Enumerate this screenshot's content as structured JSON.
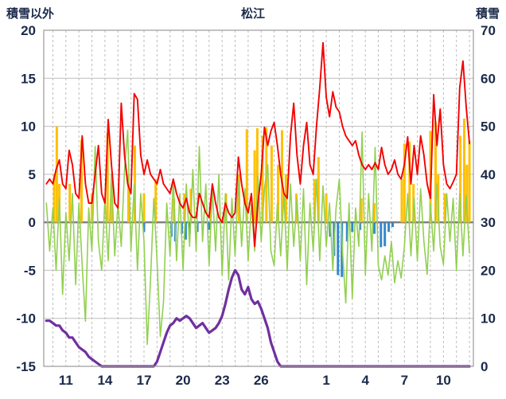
{
  "header": {
    "left_axis_title": "積雪以外",
    "chart_title": "松江",
    "right_axis_title": "積雪"
  },
  "chart_data": {
    "type": "line",
    "title": "松江",
    "left_axis": {
      "label": "積雪以外",
      "min": -15,
      "max": 20,
      "tick_step": 5,
      "ticks": [
        -15,
        -10,
        -5,
        0,
        5,
        10,
        15,
        20
      ]
    },
    "right_axis": {
      "label": "積雪",
      "min": 0,
      "max": 70,
      "tick_step": 10,
      "ticks": [
        0,
        10,
        20,
        30,
        40,
        50,
        60,
        70
      ]
    },
    "x_domain": [
      9.3,
      42.3
    ],
    "x_ticks": [
      {
        "day": 11,
        "label": "11"
      },
      {
        "day": 14,
        "label": "14"
      },
      {
        "day": 17,
        "label": "17"
      },
      {
        "day": 20,
        "label": "20"
      },
      {
        "day": 23,
        "label": "23"
      },
      {
        "day": 26,
        "label": "26"
      },
      {
        "day": 31,
        "label": "1"
      },
      {
        "day": 34,
        "label": "4"
      },
      {
        "day": 37,
        "label": "7"
      },
      {
        "day": 40,
        "label": "10"
      }
    ],
    "grid": {
      "vertical_dashed_every_day": true,
      "horizontal_solid_every_tick": true
    },
    "style": {
      "grid_color": "#bdbdbd",
      "zero_line_color": "#808080",
      "frame_color": "#9a9a9a",
      "axis_text_color": "#1b2a4a",
      "background": "#ffffff"
    },
    "series": [
      {
        "name": "green-line",
        "axis": "left",
        "color": "#92d050",
        "width": 1.6,
        "t0": 9.5,
        "dt": 0.25,
        "values": [
          2,
          -3,
          1.5,
          -5,
          2.5,
          -7.5,
          1,
          -4,
          3,
          -6.5,
          2,
          -4.5,
          -10.3,
          1.5,
          -3,
          7.9,
          -2,
          -5,
          2.5,
          -4,
          5,
          -3.5,
          2,
          -2.5,
          5.5,
          9.6,
          -3,
          4,
          -5,
          3,
          -2,
          -12.7,
          -6,
          2.5,
          -4,
          -11.9,
          -8.3,
          2,
          -3.5,
          4.5,
          -4,
          3,
          -5,
          4,
          -2.5,
          5.5,
          -3,
          7.9,
          -2,
          4,
          -4.5,
          3.5,
          -3,
          5,
          -5.5,
          3,
          -6,
          2.5,
          -3.5,
          4.5,
          -2.5,
          3.5,
          -4,
          2,
          -3,
          4.8,
          -2,
          3.5,
          6,
          -3,
          -4.5,
          2,
          -3.5,
          3,
          -5,
          4,
          -2.5,
          2.5,
          -4,
          3.5,
          -6.5,
          2,
          -3,
          4.5,
          -4,
          3.8,
          -2.5,
          2,
          -5,
          1.5,
          4.5,
          -3,
          -8.4,
          2,
          -7.9,
          1.5,
          -2.5,
          9.4,
          -5.5,
          3,
          -3,
          7.8,
          -4.5,
          -6,
          -3.5,
          -5.5,
          -2,
          -6.3,
          -4,
          -5.8,
          -2.5,
          3,
          -3.5,
          2.5,
          -4,
          3.5,
          -2,
          -5.4,
          2,
          -3,
          4,
          -2.5,
          -4.4,
          3,
          -2,
          2.5,
          -5,
          3,
          -3.5,
          2.8,
          -3.2
        ]
      },
      {
        "name": "red-line",
        "axis": "left",
        "color": "#f40000",
        "width": 1.9,
        "t0": 9.5,
        "dt": 0.25,
        "values": [
          4,
          4.5,
          4,
          5.5,
          6.5,
          4,
          3.5,
          7.5,
          6,
          3,
          2.5,
          9,
          4,
          2,
          2,
          5,
          8,
          3,
          2,
          10.7,
          6,
          2,
          1.5,
          12.4,
          7,
          4,
          3,
          13.4,
          12.8,
          7,
          5,
          6.5,
          5,
          4.5,
          4,
          5.5,
          4,
          3.5,
          3,
          4.5,
          3,
          2,
          1.5,
          2.5,
          1,
          0.5,
          0.5,
          3,
          2,
          1,
          0.5,
          4,
          2,
          0.5,
          0,
          2,
          1,
          0.5,
          1,
          6.8,
          4,
          2,
          1,
          3,
          -2.5,
          2,
          5,
          9.9,
          8,
          9.5,
          10.4,
          8,
          5,
          3,
          2.5,
          9,
          12.4,
          7,
          4,
          8,
          10.4,
          6,
          5,
          10,
          14,
          18.7,
          13,
          11,
          13.6,
          12,
          11.5,
          10,
          9,
          8.5,
          8,
          8.5,
          7,
          6,
          5.5,
          6,
          5.5,
          6.2,
          5.5,
          7.8,
          6,
          5,
          5.5,
          6.5,
          5,
          4.5,
          6,
          8.9,
          4,
          8,
          5,
          9,
          7,
          4,
          2.5,
          13.3,
          8,
          11.8,
          6,
          4,
          3.5,
          4.2,
          5,
          14,
          16.8,
          12,
          8.2
        ]
      },
      {
        "name": "purple-snow-line",
        "axis": "right",
        "color": "#7030a0",
        "width": 3.2,
        "t0": 9.5,
        "dt": 0.25,
        "values": [
          9.5,
          9.5,
          9,
          8.5,
          8.5,
          7.5,
          7,
          6,
          6,
          5,
          4,
          3.5,
          3,
          2,
          1.5,
          1,
          0.5,
          0,
          0,
          0,
          0,
          0,
          0,
          0,
          0,
          0,
          0,
          0,
          0,
          0,
          0,
          0,
          0,
          0,
          1,
          3,
          5,
          7,
          8.5,
          9,
          10,
          9.5,
          10,
          10.5,
          10,
          9,
          8,
          8.5,
          9,
          8,
          7,
          7.5,
          8,
          9,
          10.5,
          13,
          16,
          18.5,
          20,
          19,
          16,
          15,
          16.5,
          14,
          13,
          13.5,
          12,
          10,
          8,
          5,
          3,
          1,
          0,
          0,
          0,
          0,
          0,
          0,
          0,
          0,
          0,
          0,
          0,
          0,
          0,
          0,
          0,
          0,
          0,
          0,
          0,
          0,
          0,
          0,
          0,
          0,
          0,
          0,
          0,
          0,
          0,
          0,
          0,
          0,
          0,
          0,
          0,
          0,
          0,
          0,
          0,
          0,
          0,
          0,
          0,
          0,
          0,
          0,
          0,
          0,
          0,
          0,
          0,
          0,
          0,
          0,
          0,
          0,
          0,
          0,
          0
        ]
      }
    ],
    "bars": [
      {
        "name": "orange-bars",
        "axis": "left",
        "color": "#ffc000",
        "points": [
          [
            10.1,
            5
          ],
          [
            10.3,
            10.0
          ],
          [
            10.5,
            4
          ],
          [
            11.3,
            4
          ],
          [
            12.2,
            8.6
          ],
          [
            13.0,
            3
          ],
          [
            14.2,
            9.3
          ],
          [
            14.5,
            4
          ],
          [
            15.8,
            5
          ],
          [
            16.3,
            8.0
          ],
          [
            17.0,
            3
          ],
          [
            17.9,
            4.5
          ],
          [
            19.3,
            2.5
          ],
          [
            20.1,
            3
          ],
          [
            20.6,
            3.5
          ],
          [
            22.1,
            2
          ],
          [
            23.3,
            3
          ],
          [
            24.3,
            5
          ],
          [
            24.9,
            9.7
          ],
          [
            25.5,
            7.5
          ],
          [
            25.7,
            9.8
          ],
          [
            26.1,
            9.0
          ],
          [
            26.4,
            9.9
          ],
          [
            26.8,
            8.0
          ],
          [
            27.3,
            6
          ],
          [
            27.6,
            9.6
          ],
          [
            27.9,
            5
          ],
          [
            28.7,
            3
          ],
          [
            30.1,
            4.5
          ],
          [
            30.4,
            6.8
          ],
          [
            31.0,
            3
          ],
          [
            33.7,
            2.5
          ],
          [
            34.7,
            2
          ],
          [
            36.8,
            4.5
          ],
          [
            37.0,
            8.2
          ],
          [
            37.4,
            8.4
          ],
          [
            37.7,
            4
          ],
          [
            39.0,
            9.5
          ],
          [
            39.4,
            10.5
          ],
          [
            39.6,
            5
          ],
          [
            40.1,
            3
          ],
          [
            41.3,
            9.0
          ],
          [
            41.6,
            10.8
          ],
          [
            41.8,
            6
          ],
          [
            42.0,
            8.5
          ]
        ]
      },
      {
        "name": "blue-bars",
        "axis": "left",
        "color": "#3388cc",
        "points": [
          [
            17.0,
            -1.0
          ],
          [
            19.1,
            -1.5
          ],
          [
            19.4,
            -2.0
          ],
          [
            19.9,
            -1.2
          ],
          [
            20.2,
            -1.8
          ],
          [
            20.5,
            -1.2
          ],
          [
            21.1,
            -1.0
          ],
          [
            22.0,
            -0.8
          ],
          [
            31.3,
            -1.5
          ],
          [
            31.6,
            -3.5
          ],
          [
            31.9,
            -5.5
          ],
          [
            32.2,
            -5.7
          ],
          [
            32.6,
            -2.0
          ],
          [
            33.0,
            -1.0
          ],
          [
            33.6,
            -0.8
          ],
          [
            34.7,
            -1.2
          ],
          [
            35.2,
            -2.6
          ],
          [
            35.5,
            -2.5
          ],
          [
            35.8,
            -1.0
          ],
          [
            36.1,
            -0.5
          ]
        ]
      }
    ]
  }
}
